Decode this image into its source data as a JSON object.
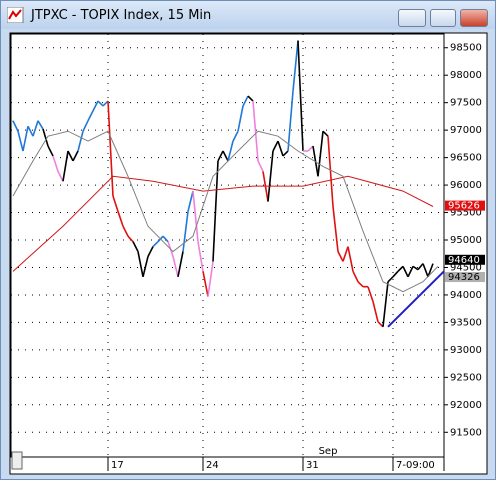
{
  "chart_data": {
    "type": "line",
    "title": "JTPXC - TOPIX Index, 15 Min",
    "xlim": [
      -0.4,
      86.2
    ],
    "ylim": [
      91050,
      98750
    ],
    "yticks": [
      98500,
      98000,
      97500,
      97000,
      96500,
      96000,
      95500,
      95000,
      94500,
      94000,
      93500,
      93000,
      92500,
      92000,
      91500
    ],
    "xticks": [
      {
        "value": 19,
        "label": "17"
      },
      {
        "value": 38,
        "label": "24"
      },
      {
        "value": 58,
        "label": "31"
      },
      {
        "value": 76,
        "label": "7-09:00"
      }
    ],
    "annotations": [
      {
        "text": "Sep",
        "x": 63
      }
    ],
    "grid": true,
    "series": [
      {
        "name": "price",
        "x": [
          0,
          1,
          2,
          3,
          4,
          5,
          6,
          7,
          8,
          9,
          10,
          11,
          12,
          13,
          14,
          15,
          16,
          17,
          18,
          19,
          20,
          21,
          22,
          23,
          24,
          25,
          26,
          27,
          28,
          29,
          30,
          31,
          32,
          33,
          34,
          35,
          36,
          37,
          38,
          39,
          40,
          41,
          42,
          43,
          44,
          45,
          46,
          47,
          48,
          49,
          50,
          51,
          52,
          53,
          54,
          55,
          56,
          57,
          58,
          59,
          60,
          61,
          62,
          63,
          64,
          65,
          66,
          67,
          68,
          69,
          70,
          71,
          72,
          73,
          74,
          75,
          76,
          77,
          78,
          79,
          80,
          81,
          82,
          83,
          84
        ],
        "values": [
          97170,
          96980,
          96620,
          97070,
          96890,
          97170,
          97020,
          96710,
          96530,
          96250,
          96070,
          96620,
          96440,
          96620,
          96980,
          97170,
          97350,
          97530,
          97440,
          97530,
          95800,
          95520,
          95250,
          95070,
          94970,
          94790,
          94330,
          94700,
          94880,
          94970,
          95070,
          94970,
          94700,
          94330,
          94790,
          95520,
          95890,
          94970,
          94430,
          93970,
          94610,
          96440,
          96620,
          96440,
          96800,
          96980,
          97440,
          97620,
          97530,
          96440,
          96250,
          95700,
          96620,
          96800,
          96530,
          96620,
          97710,
          98630,
          96620,
          96620,
          96710,
          96160,
          96980,
          96890,
          95610,
          94790,
          94610,
          94880,
          94430,
          94240,
          94150,
          94150,
          93880,
          93510,
          93420,
          94240,
          94330,
          94430,
          94520,
          94330,
          94520,
          94460,
          94570,
          94330,
          94570
        ],
        "colors": [
          "#1e78d8",
          "#1e78d8",
          "#1e78d8",
          "#1e78d8",
          "#1e78d8",
          "#1e78d8",
          "#1e78d8",
          "#000000",
          "#000000",
          "#f080e0",
          "#f080e0",
          "#000000",
          "#000000",
          "#000000",
          "#1e78d8",
          "#1e78d8",
          "#1e78d8",
          "#1e78d8",
          "#1e78d8",
          "#1e78d8",
          "#e01010",
          "#e01010",
          "#e01010",
          "#e01010",
          "#e01010",
          "#000000",
          "#000000",
          "#000000",
          "#000000",
          "#1e78d8",
          "#1e78d8",
          "#1e78d8",
          "#f080e0",
          "#f080e0",
          "#000000",
          "#1e78d8",
          "#1e78d8",
          "#f080e0",
          "#f080e0",
          "#e01010",
          "#f080e0",
          "#000000",
          "#000000",
          "#000000",
          "#1e78d8",
          "#1e78d8",
          "#1e78d8",
          "#1e78d8",
          "#000000",
          "#f080e0",
          "#f080e0",
          "#e01010",
          "#000000",
          "#000000",
          "#000000",
          "#000000",
          "#1e78d8",
          "#1e78d8",
          "#000000",
          "#f080e0",
          "#f080e0",
          "#000000",
          "#000000",
          "#000000",
          "#e01010",
          "#e01010",
          "#e01010",
          "#e01010",
          "#e01010",
          "#e01010",
          "#e01010",
          "#e01010",
          "#e01010",
          "#e01010",
          "#e01010",
          "#000000",
          "#000000",
          "#000000",
          "#000000",
          "#000000",
          "#000000",
          "#000000",
          "#000000",
          "#000000",
          "#000000"
        ]
      },
      {
        "name": "average",
        "color": "#d01818",
        "x": [
          0,
          10,
          20,
          28,
          38,
          48,
          58,
          67,
          78,
          84
        ],
        "values": [
          94430,
          95250,
          96160,
          96070,
          95890,
          95980,
          95980,
          96160,
          95890,
          95610
        ]
      },
      {
        "name": "band",
        "color": "#808080",
        "x": [
          0,
          4,
          7,
          11,
          15,
          19,
          23,
          27,
          32,
          36,
          40,
          45,
          49,
          53,
          57,
          62,
          66,
          70,
          74,
          78,
          82,
          85
        ],
        "values": [
          95800,
          96440,
          96890,
          96980,
          96800,
          96980,
          96160,
          95250,
          94790,
          95070,
          96160,
          96620,
          96980,
          96890,
          96620,
          96340,
          96160,
          95160,
          94240,
          94060,
          94240,
          94520
        ]
      },
      {
        "name": "trendline",
        "color": "#2020c0",
        "x": [
          75,
          86.2
        ],
        "values": [
          93420,
          94430
        ]
      }
    ],
    "markers": [
      {
        "value": 95626,
        "color": "#e01010"
      },
      {
        "value": 94640,
        "color": "#000000"
      },
      {
        "value": 94326,
        "color": "#b0b0b0"
      }
    ]
  }
}
